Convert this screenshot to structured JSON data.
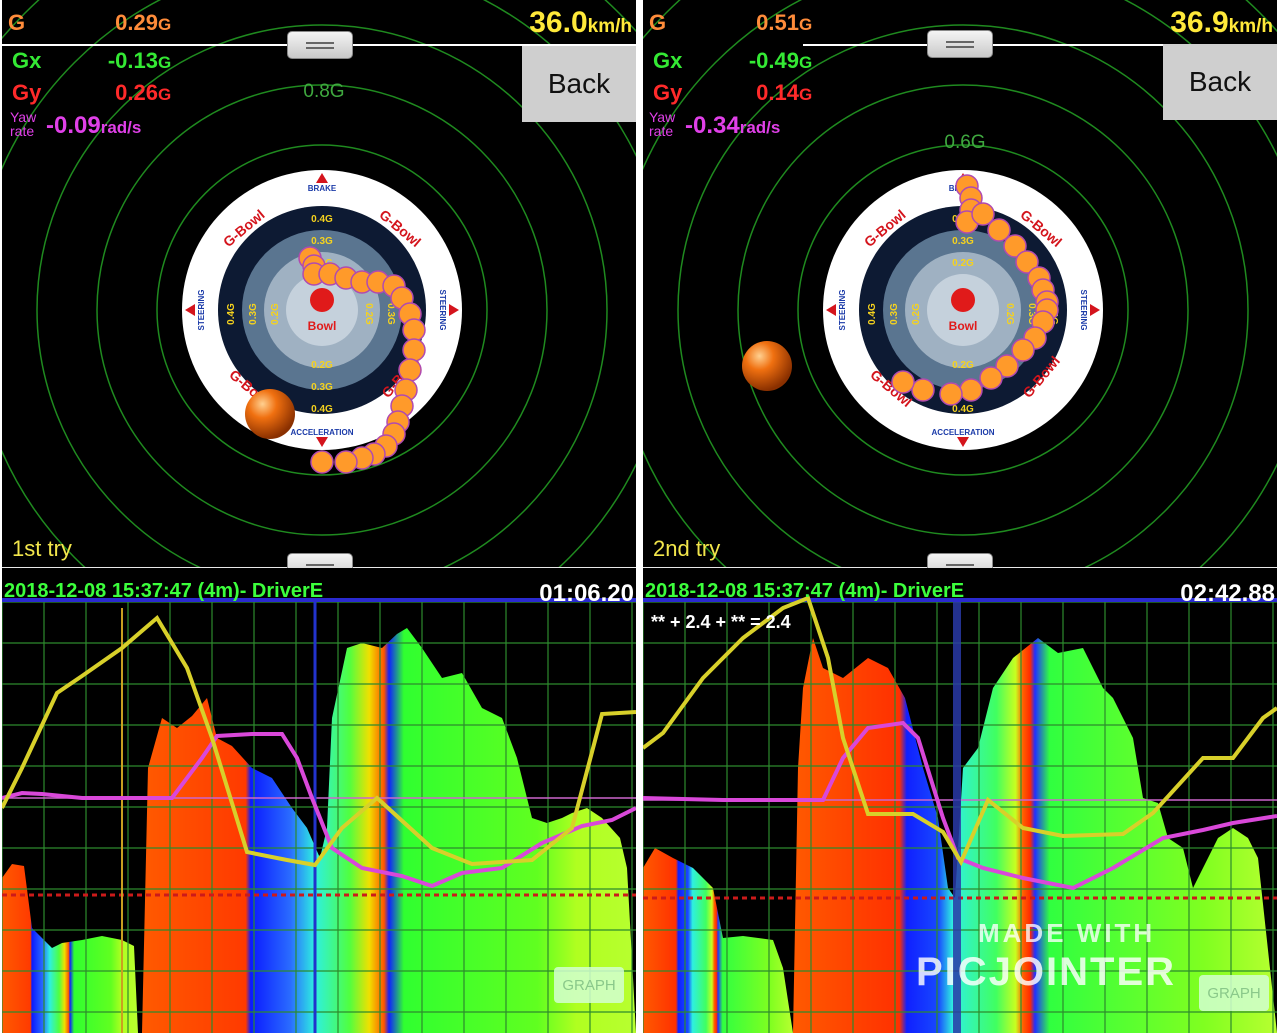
{
  "panels": [
    {
      "g_label": "G",
      "g_value": "0.29",
      "g_unit": "G",
      "gx_label": "Gx",
      "gx_value": "-0.13",
      "gx_unit": "G",
      "gy_label": "Gy",
      "gy_value": "0.26",
      "gy_unit": "G",
      "yaw_label_1": "Yaw",
      "yaw_label_2": "rate",
      "yaw_value": "-0.09",
      "yaw_unit": "rad/s",
      "speed_value": "36.0",
      "speed_unit": "km/h",
      "back_label": "Back",
      "ring_label": "0.8G",
      "try_label": "1st try",
      "graph_title": "2018-12-08 15:37:47 (4m)- DriverE",
      "graph_time": "01:06.20",
      "graph_button": "GRAPH"
    },
    {
      "g_label": "G",
      "g_value": "0.51",
      "g_unit": "G",
      "gx_label": "Gx",
      "gx_value": "-0.49",
      "gx_unit": "G",
      "gy_label": "Gy",
      "gy_value": "0.14",
      "gy_unit": "G",
      "yaw_label_1": "Yaw",
      "yaw_label_2": "rate",
      "yaw_value": "-0.34",
      "yaw_unit": "rad/s",
      "speed_value": "36.9",
      "speed_unit": "km/h",
      "back_label": "Back",
      "ring_label": "0.6G",
      "try_label": "2nd try",
      "graph_title": "2018-12-08 15:37:47 (4m)- DriverE",
      "graph_time": "02:42.88",
      "graph_formula": "** + 2.4 + ** = 2.4",
      "graph_button": "GRAPH"
    }
  ],
  "gbowl_dial": {
    "brand": "G-Bowl",
    "center_brand": "Bowl",
    "brake_label": "BRAKE",
    "accel_label": "ACCELERATION",
    "steering_label": "STEERING",
    "rings": [
      "0.4G",
      "0.3G",
      "0.2G"
    ]
  },
  "watermark": {
    "line1": "MADE WITH",
    "line2": "PICJOINTER"
  },
  "colors": {
    "g_color": "#ff8c3a",
    "gx_color": "#34e934",
    "gy_color": "#ff2a2a",
    "yaw_color": "#e040e8",
    "speed_color": "#ffe93a",
    "trace_dot": "#ff9a2a",
    "gauge_ball": "#f07010"
  },
  "traces": [
    [
      [
        -0.03,
        0.13
      ],
      [
        -0.02,
        0.11
      ],
      [
        -0.02,
        0.09
      ],
      [
        0.02,
        0.09
      ],
      [
        0.06,
        0.08
      ],
      [
        0.1,
        0.07
      ],
      [
        0.14,
        0.07
      ],
      [
        0.18,
        0.06
      ],
      [
        0.2,
        0.03
      ],
      [
        0.22,
        -0.01
      ],
      [
        0.23,
        -0.05
      ],
      [
        0.23,
        -0.1
      ],
      [
        0.22,
        -0.15
      ],
      [
        0.21,
        -0.2
      ],
      [
        0.2,
        -0.24
      ],
      [
        0.19,
        -0.28
      ],
      [
        0.18,
        -0.31
      ],
      [
        0.16,
        -0.34
      ],
      [
        0.13,
        -0.36
      ],
      [
        0.1,
        -0.37
      ],
      [
        0.06,
        -0.38
      ],
      [
        0.0,
        -0.38
      ]
    ],
    [
      [
        0.01,
        0.31
      ],
      [
        0.02,
        0.28
      ],
      [
        0.02,
        0.25
      ],
      [
        0.01,
        0.22
      ],
      [
        0.05,
        0.24
      ],
      [
        0.09,
        0.2
      ],
      [
        0.13,
        0.16
      ],
      [
        0.16,
        0.12
      ],
      [
        0.19,
        0.08
      ],
      [
        0.2,
        0.05
      ],
      [
        0.21,
        0.02
      ],
      [
        0.21,
        -0.0
      ],
      [
        0.2,
        -0.03
      ],
      [
        0.18,
        -0.07
      ],
      [
        0.15,
        -0.1
      ],
      [
        0.11,
        -0.14
      ],
      [
        0.07,
        -0.17
      ],
      [
        0.02,
        -0.2
      ],
      [
        -0.03,
        -0.21
      ],
      [
        -0.1,
        -0.2
      ],
      [
        -0.15,
        -0.18
      ]
    ]
  ],
  "gauge_ball": [
    [
      -0.13,
      -0.26
    ],
    [
      -0.49,
      -0.14
    ]
  ]
}
